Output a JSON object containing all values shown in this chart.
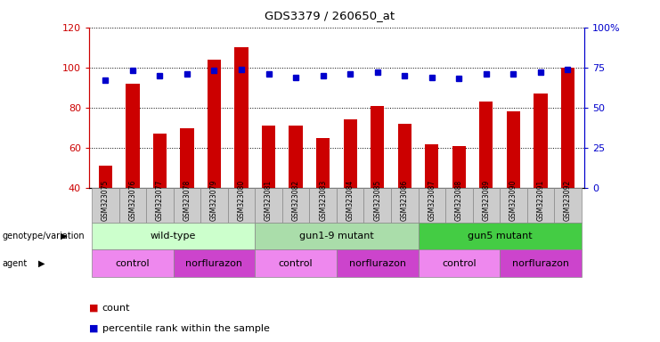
{
  "title": "GDS3379 / 260650_at",
  "samples": [
    "GSM323075",
    "GSM323076",
    "GSM323077",
    "GSM323078",
    "GSM323079",
    "GSM323080",
    "GSM323081",
    "GSM323082",
    "GSM323083",
    "GSM323084",
    "GSM323085",
    "GSM323086",
    "GSM323087",
    "GSM323088",
    "GSM323089",
    "GSM323090",
    "GSM323091",
    "GSM323092"
  ],
  "counts": [
    51,
    92,
    67,
    70,
    104,
    110,
    71,
    71,
    65,
    74,
    81,
    72,
    62,
    61,
    83,
    78,
    87,
    100
  ],
  "percentile_ranks": [
    67,
    73,
    70,
    71,
    73,
    74,
    71,
    69,
    70,
    71,
    72,
    70,
    69,
    68,
    71,
    71,
    72,
    74
  ],
  "bar_color": "#CC0000",
  "dot_color": "#0000CC",
  "ylim_left": [
    40,
    120
  ],
  "ylim_right": [
    0,
    100
  ],
  "yticks_left": [
    40,
    60,
    80,
    100,
    120
  ],
  "yticks_right": [
    0,
    25,
    50,
    75,
    100
  ],
  "background_color": "#ffffff",
  "sample_area_color": "#cccccc",
  "genotype_groups": [
    {
      "label": "wild-type",
      "start": 0,
      "end": 5,
      "color": "#ccffcc"
    },
    {
      "label": "gun1-9 mutant",
      "start": 6,
      "end": 11,
      "color": "#aaddaa"
    },
    {
      "label": "gun5 mutant",
      "start": 12,
      "end": 17,
      "color": "#44cc44"
    }
  ],
  "agent_groups": [
    {
      "label": "control",
      "start": 0,
      "end": 2,
      "color": "#ee88ee"
    },
    {
      "label": "norflurazon",
      "start": 3,
      "end": 5,
      "color": "#cc44cc"
    },
    {
      "label": "control",
      "start": 6,
      "end": 8,
      "color": "#ee88ee"
    },
    {
      "label": "norflurazon",
      "start": 9,
      "end": 11,
      "color": "#cc44cc"
    },
    {
      "label": "control",
      "start": 12,
      "end": 14,
      "color": "#ee88ee"
    },
    {
      "label": "norflurazon",
      "start": 15,
      "end": 17,
      "color": "#cc44cc"
    }
  ],
  "genotype_row_label": "genotype/variation",
  "agent_row_label": "agent",
  "legend_count_label": "count",
  "legend_percentile_label": "percentile rank within the sample"
}
